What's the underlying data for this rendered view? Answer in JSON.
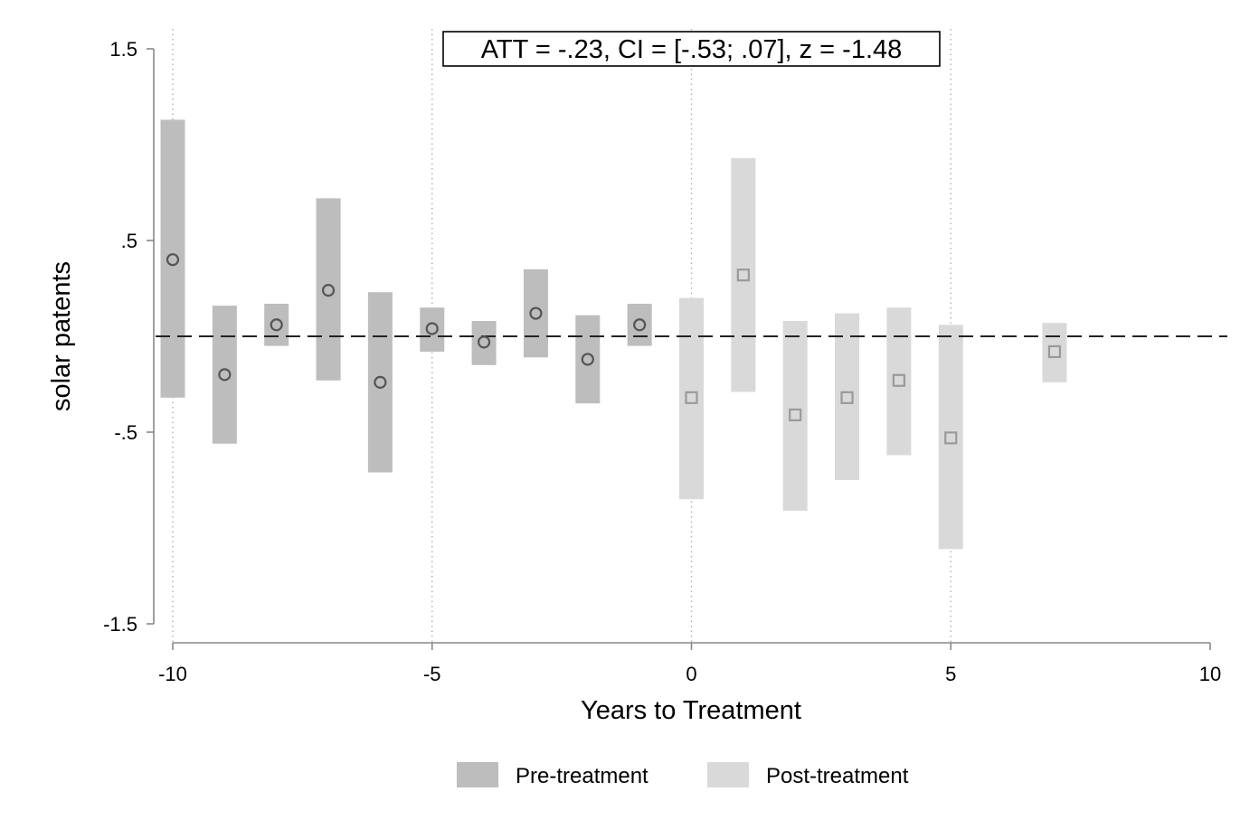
{
  "chart_data": {
    "type": "scatter",
    "subtype": "event-study with confidence interval bars",
    "annotation": "ATT = -.23, CI = [-.53; .07], z = -1.48",
    "xlabel": "Years to Treatment",
    "ylabel": "solar patents",
    "xlim": [
      -10,
      10
    ],
    "ylim": [
      -1.5,
      1.5
    ],
    "x_ticks": [
      -10,
      -5,
      0,
      5,
      10
    ],
    "x_tick_labels": [
      "-10",
      "-5",
      "0",
      "5",
      "10"
    ],
    "y_ticks": [
      1.5,
      0.5,
      -0.5,
      -1.5
    ],
    "y_tick_labels": [
      "1.5",
      ".5",
      "-.5",
      "-1.5"
    ],
    "vertical_reference_lines": [
      -10,
      -5,
      0,
      5
    ],
    "horizontal_reference_line": 0,
    "grid": false,
    "legend": {
      "position": "bottom-center",
      "entries": [
        "Pre-treatment",
        "Post-treatment"
      ]
    },
    "series": [
      {
        "name": "Pre-treatment",
        "marker": "circle",
        "bar_color": "#bdbdbd",
        "marker_color": "#555555",
        "points": [
          {
            "x": -10,
            "y": 0.4,
            "lo": -0.32,
            "hi": 1.13
          },
          {
            "x": -9,
            "y": -0.2,
            "lo": -0.56,
            "hi": 0.16
          },
          {
            "x": -8,
            "y": 0.06,
            "lo": -0.05,
            "hi": 0.17
          },
          {
            "x": -7,
            "y": 0.24,
            "lo": -0.23,
            "hi": 0.72
          },
          {
            "x": -6,
            "y": -0.24,
            "lo": -0.71,
            "hi": 0.23
          },
          {
            "x": -5,
            "y": 0.04,
            "lo": -0.08,
            "hi": 0.15
          },
          {
            "x": -4,
            "y": -0.03,
            "lo": -0.15,
            "hi": 0.08
          },
          {
            "x": -3,
            "y": 0.12,
            "lo": -0.11,
            "hi": 0.35
          },
          {
            "x": -2,
            "y": -0.12,
            "lo": -0.35,
            "hi": 0.11
          },
          {
            "x": -1,
            "y": 0.06,
            "lo": -0.05,
            "hi": 0.17
          }
        ]
      },
      {
        "name": "Post-treatment",
        "marker": "square",
        "bar_color": "#d9d9d9",
        "marker_color": "#9a9a9a",
        "points": [
          {
            "x": 0,
            "y": -0.32,
            "lo": -0.85,
            "hi": 0.2
          },
          {
            "x": 1,
            "y": 0.32,
            "lo": -0.29,
            "hi": 0.93
          },
          {
            "x": 2,
            "y": -0.41,
            "lo": -0.91,
            "hi": 0.08
          },
          {
            "x": 3,
            "y": -0.32,
            "lo": -0.75,
            "hi": 0.12
          },
          {
            "x": 4,
            "y": -0.23,
            "lo": -0.62,
            "hi": 0.15
          },
          {
            "x": 5,
            "y": -0.53,
            "lo": -1.11,
            "hi": 0.06
          },
          {
            "x": 7,
            "y": -0.08,
            "lo": -0.24,
            "hi": 0.07
          }
        ]
      }
    ]
  }
}
